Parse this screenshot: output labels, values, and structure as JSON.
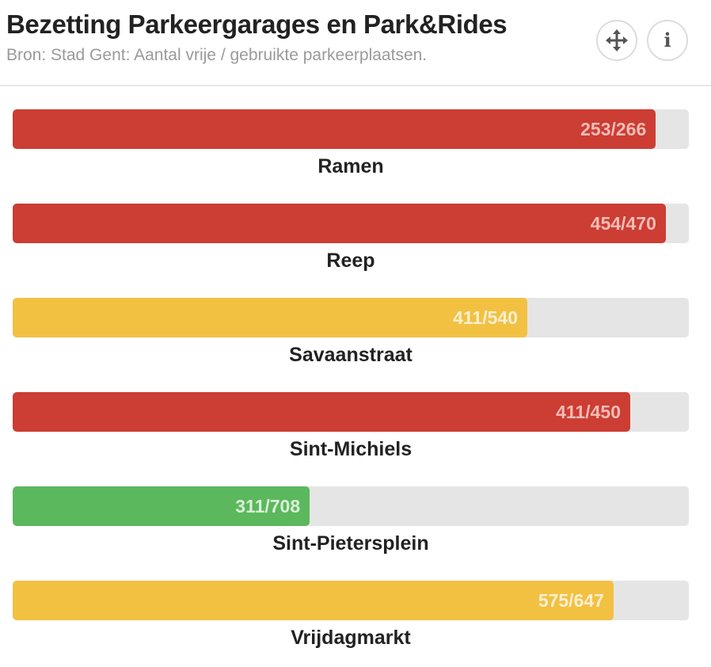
{
  "header": {
    "title": "Bezetting Parkeergarages en Park&Rides",
    "subtitle": "Bron: Stad Gent: Aantal vrije / gebruikte parkeerplaatsen.",
    "move_icon": "move-arrows-icon",
    "info_icon": "info-icon",
    "info_glyph": "i"
  },
  "colors": {
    "red": "#cc3d33",
    "yellow": "#f2c142",
    "green": "#5cb85c",
    "red_text": "#f3bcb6",
    "yellow_text": "#fcefd0",
    "green_text": "#d9f0d9",
    "track": "#e5e5e5"
  },
  "garages": [
    {
      "name": "Ramen",
      "used": 253,
      "total": 266,
      "value_text": "253/266",
      "status": "red"
    },
    {
      "name": "Reep",
      "used": 454,
      "total": 470,
      "value_text": "454/470",
      "status": "red"
    },
    {
      "name": "Savaanstraat",
      "used": 411,
      "total": 540,
      "value_text": "411/540",
      "status": "yellow"
    },
    {
      "name": "Sint-Michiels",
      "used": 411,
      "total": 450,
      "value_text": "411/450",
      "status": "red"
    },
    {
      "name": "Sint-Pietersplein",
      "used": 311,
      "total": 708,
      "value_text": "311/708",
      "status": "green"
    },
    {
      "name": "Vrijdagmarkt",
      "used": 575,
      "total": 647,
      "value_text": "575/647",
      "status": "yellow"
    }
  ]
}
